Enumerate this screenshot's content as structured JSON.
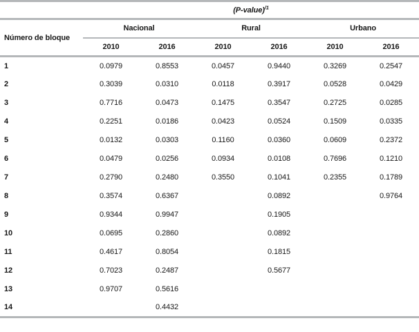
{
  "table": {
    "title": "(P-value)",
    "title_superscript": "/1",
    "block_header": "Número de bloque",
    "groups": [
      {
        "label": "Nacional",
        "years": [
          "2010",
          "2016"
        ]
      },
      {
        "label": "Rural",
        "years": [
          "2010",
          "2016"
        ]
      },
      {
        "label": "Urbano",
        "years": [
          "2010",
          "2016"
        ]
      }
    ],
    "rows": [
      {
        "block": "1",
        "values": [
          "0.0979",
          "0.8553",
          "0.0457",
          "0.9440",
          "0.3269",
          "0.2547"
        ]
      },
      {
        "block": "2",
        "values": [
          "0.3039",
          "0.0310",
          "0.0118",
          "0.3917",
          "0.0528",
          "0.0429"
        ]
      },
      {
        "block": "3",
        "values": [
          "0.7716",
          "0.0473",
          "0.1475",
          "0.3547",
          "0.2725",
          "0.0285"
        ]
      },
      {
        "block": "4",
        "values": [
          "0.2251",
          "0.0186",
          "0.0423",
          "0.0524",
          "0.1509",
          "0.0335"
        ]
      },
      {
        "block": "5",
        "values": [
          "0.0132",
          "0.0303",
          "0.1160",
          "0.0360",
          "0.0609",
          "0.2372"
        ]
      },
      {
        "block": "6",
        "values": [
          "0.0479",
          "0.0256",
          "0.0934",
          "0.0108",
          "0.7696",
          "0.1210"
        ]
      },
      {
        "block": "7",
        "values": [
          "0.2790",
          "0.2480",
          "0.3550",
          "0.1041",
          "0.2355",
          "0.1789"
        ]
      },
      {
        "block": "8",
        "values": [
          "0.3574",
          "0.6367",
          "",
          "0.0892",
          "",
          "0.9764"
        ]
      },
      {
        "block": "9",
        "values": [
          "0.9344",
          "0.9947",
          "",
          "0.1905",
          "",
          ""
        ]
      },
      {
        "block": "10",
        "values": [
          "0.0695",
          "0.2860",
          "",
          "0.0892",
          "",
          ""
        ]
      },
      {
        "block": "11",
        "values": [
          "0.4617",
          "0.8054",
          "",
          "0.1815",
          "",
          ""
        ]
      },
      {
        "block": "12",
        "values": [
          "0.7023",
          "0.2487",
          "",
          "0.5677",
          "",
          ""
        ]
      },
      {
        "block": "13",
        "values": [
          "0.9707",
          "0.5616",
          "",
          "",
          "",
          ""
        ]
      },
      {
        "block": "14",
        "values": [
          "",
          "0.4432",
          "",
          "",
          "",
          ""
        ]
      }
    ]
  },
  "colors": {
    "rule_gray": "#b4b7b9",
    "text": "#161616",
    "background": "#ffffff"
  }
}
